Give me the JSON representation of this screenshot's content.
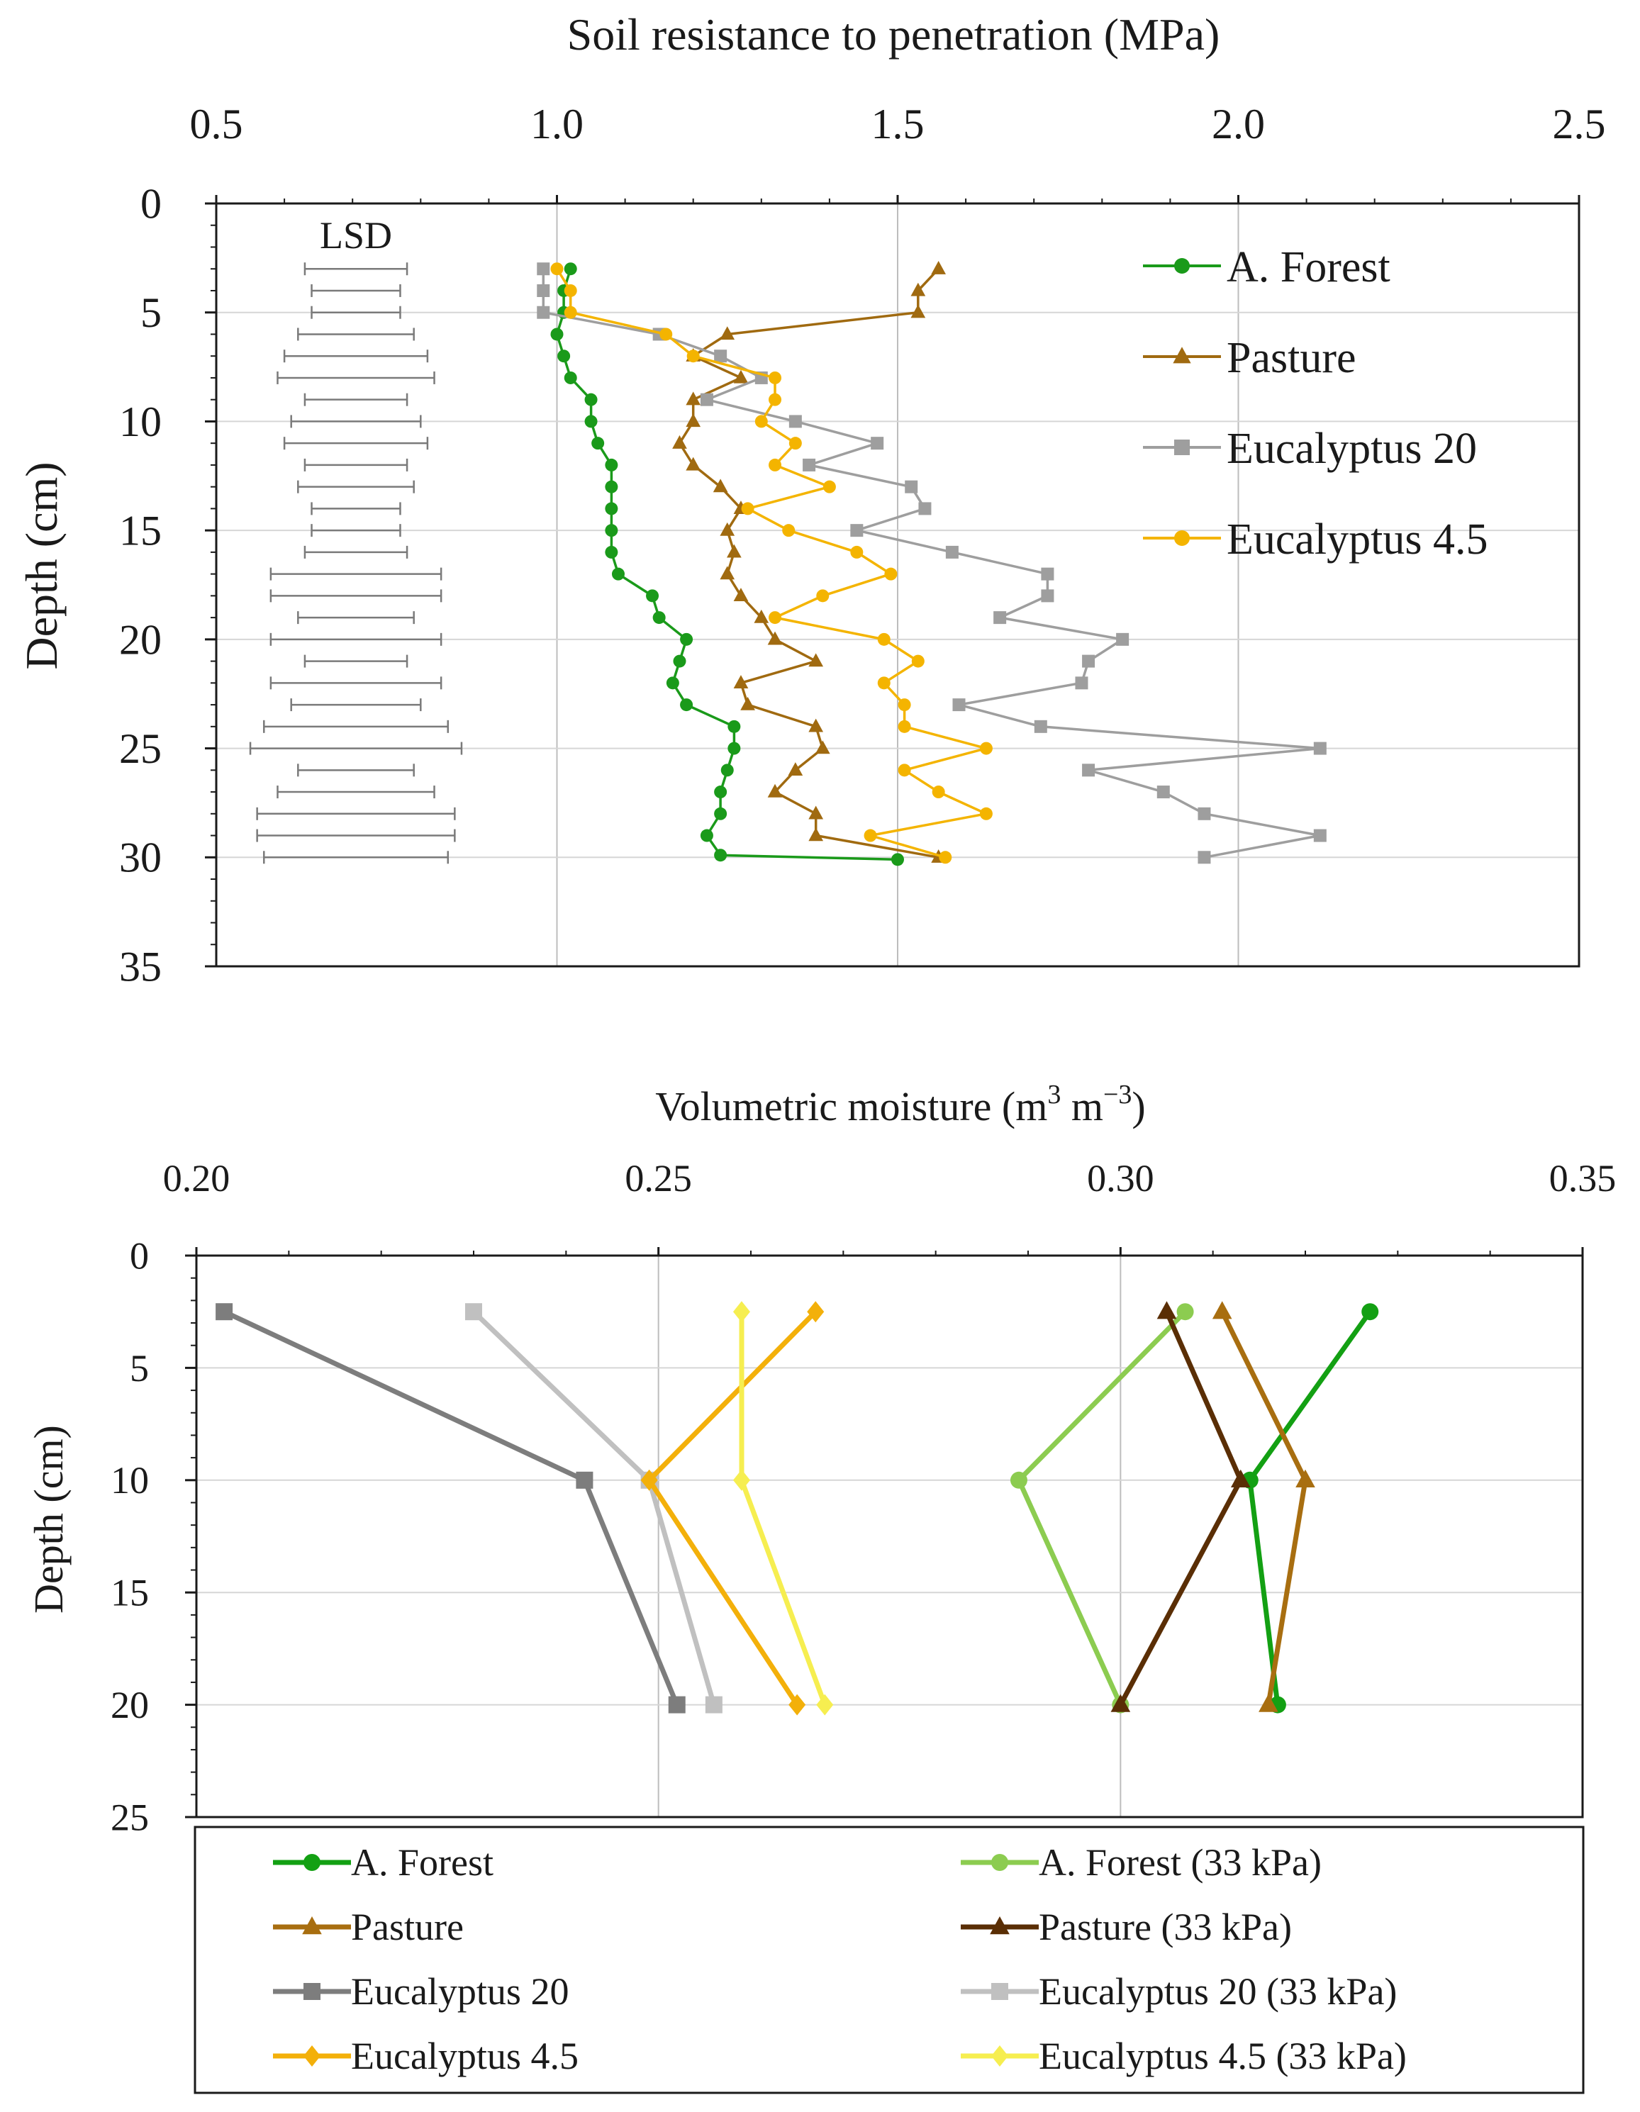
{
  "chart_data": [
    {
      "type": "line",
      "title": "",
      "xlabel": "Soil resistance to penetration (MPa)",
      "ylabel": "Depth (cm)",
      "xlim": [
        0.5,
        2.5
      ],
      "ylim": [
        0,
        35
      ],
      "x_ticks": [
        "0.5",
        "1.0",
        "1.5",
        "2.0",
        "2.5"
      ],
      "y_ticks": [
        "0",
        "5",
        "10",
        "15",
        "20",
        "25",
        "30",
        "35"
      ],
      "x_axis_position": "top",
      "y_inverted": true,
      "grid": true,
      "legend_position": "top-right",
      "lsd_label": "LSD",
      "lsd_bars": [
        {
          "depth": 3,
          "low": 0.63,
          "high": 0.78
        },
        {
          "depth": 4,
          "low": 0.64,
          "high": 0.77
        },
        {
          "depth": 5,
          "low": 0.64,
          "high": 0.77
        },
        {
          "depth": 6,
          "low": 0.62,
          "high": 0.79
        },
        {
          "depth": 7,
          "low": 0.6,
          "high": 0.81
        },
        {
          "depth": 8,
          "low": 0.59,
          "high": 0.82
        },
        {
          "depth": 9,
          "low": 0.63,
          "high": 0.78
        },
        {
          "depth": 10,
          "low": 0.61,
          "high": 0.8
        },
        {
          "depth": 11,
          "low": 0.6,
          "high": 0.81
        },
        {
          "depth": 12,
          "low": 0.63,
          "high": 0.78
        },
        {
          "depth": 13,
          "low": 0.62,
          "high": 0.79
        },
        {
          "depth": 14,
          "low": 0.64,
          "high": 0.77
        },
        {
          "depth": 15,
          "low": 0.64,
          "high": 0.77
        },
        {
          "depth": 16,
          "low": 0.63,
          "high": 0.78
        },
        {
          "depth": 17,
          "low": 0.58,
          "high": 0.83
        },
        {
          "depth": 18,
          "low": 0.58,
          "high": 0.83
        },
        {
          "depth": 19,
          "low": 0.62,
          "high": 0.79
        },
        {
          "depth": 20,
          "low": 0.58,
          "high": 0.83
        },
        {
          "depth": 21,
          "low": 0.63,
          "high": 0.78
        },
        {
          "depth": 22,
          "low": 0.58,
          "high": 0.83
        },
        {
          "depth": 23,
          "low": 0.61,
          "high": 0.8
        },
        {
          "depth": 24,
          "low": 0.57,
          "high": 0.84
        },
        {
          "depth": 25,
          "low": 0.55,
          "high": 0.86
        },
        {
          "depth": 26,
          "low": 0.62,
          "high": 0.79
        },
        {
          "depth": 27,
          "low": 0.59,
          "high": 0.82
        },
        {
          "depth": 28,
          "low": 0.56,
          "high": 0.85
        },
        {
          "depth": 29,
          "low": 0.56,
          "high": 0.85
        },
        {
          "depth": 30,
          "low": 0.57,
          "high": 0.84
        }
      ],
      "series": [
        {
          "name": "A. Forest",
          "color": "#1a9a1a",
          "marker": "circle",
          "points": [
            [
              1.02,
              3
            ],
            [
              1.01,
              4
            ],
            [
              1.01,
              5
            ],
            [
              1.0,
              6
            ],
            [
              1.01,
              7
            ],
            [
              1.02,
              8
            ],
            [
              1.05,
              9
            ],
            [
              1.05,
              10
            ],
            [
              1.06,
              11
            ],
            [
              1.08,
              12
            ],
            [
              1.08,
              13
            ],
            [
              1.08,
              14
            ],
            [
              1.08,
              15
            ],
            [
              1.08,
              16
            ],
            [
              1.09,
              17
            ],
            [
              1.14,
              18
            ],
            [
              1.15,
              19
            ],
            [
              1.19,
              20
            ],
            [
              1.18,
              21
            ],
            [
              1.17,
              22
            ],
            [
              1.19,
              23
            ],
            [
              1.26,
              24
            ],
            [
              1.26,
              25
            ],
            [
              1.25,
              26
            ],
            [
              1.24,
              27
            ],
            [
              1.24,
              28
            ],
            [
              1.22,
              29
            ],
            [
              1.24,
              29.9
            ],
            [
              1.5,
              30.1
            ]
          ]
        },
        {
          "name": "Pasture",
          "color": "#a06a10",
          "marker": "triangle",
          "points": [
            [
              1.56,
              3
            ],
            [
              1.53,
              4
            ],
            [
              1.53,
              5
            ],
            [
              1.25,
              6
            ],
            [
              1.2,
              7
            ],
            [
              1.27,
              8
            ],
            [
              1.2,
              9
            ],
            [
              1.2,
              10
            ],
            [
              1.18,
              11
            ],
            [
              1.2,
              12
            ],
            [
              1.24,
              13
            ],
            [
              1.27,
              14
            ],
            [
              1.25,
              15
            ],
            [
              1.26,
              16
            ],
            [
              1.25,
              17
            ],
            [
              1.27,
              18
            ],
            [
              1.3,
              19
            ],
            [
              1.32,
              20
            ],
            [
              1.38,
              21
            ],
            [
              1.27,
              22
            ],
            [
              1.28,
              23
            ],
            [
              1.38,
              24
            ],
            [
              1.39,
              25
            ],
            [
              1.35,
              26
            ],
            [
              1.32,
              27
            ],
            [
              1.38,
              28
            ],
            [
              1.38,
              29
            ],
            [
              1.56,
              30
            ]
          ]
        },
        {
          "name": "Eucalyptus 20",
          "color": "#9e9e9e",
          "marker": "square",
          "points": [
            [
              0.98,
              3
            ],
            [
              0.98,
              4
            ],
            [
              0.98,
              5
            ],
            [
              1.15,
              6
            ],
            [
              1.24,
              7
            ],
            [
              1.3,
              8
            ],
            [
              1.22,
              9
            ],
            [
              1.35,
              10
            ],
            [
              1.47,
              11
            ],
            [
              1.37,
              12
            ],
            [
              1.52,
              13
            ],
            [
              1.54,
              14
            ],
            [
              1.44,
              15
            ],
            [
              1.58,
              16
            ],
            [
              1.72,
              17
            ],
            [
              1.72,
              18
            ],
            [
              1.65,
              19
            ],
            [
              1.83,
              20
            ],
            [
              1.78,
              21
            ],
            [
              1.77,
              22
            ],
            [
              1.59,
              23
            ],
            [
              1.71,
              24
            ],
            [
              2.12,
              25
            ],
            [
              1.78,
              26
            ],
            [
              1.89,
              27
            ],
            [
              1.95,
              28
            ],
            [
              2.12,
              29
            ],
            [
              1.95,
              30
            ]
          ]
        },
        {
          "name": "Eucalyptus 4.5",
          "color": "#f4b400",
          "marker": "circle",
          "points": [
            [
              1.0,
              3
            ],
            [
              1.02,
              4
            ],
            [
              1.02,
              5
            ],
            [
              1.16,
              6
            ],
            [
              1.2,
              7
            ],
            [
              1.32,
              8
            ],
            [
              1.32,
              9
            ],
            [
              1.3,
              10
            ],
            [
              1.35,
              11
            ],
            [
              1.32,
              12
            ],
            [
              1.4,
              13
            ],
            [
              1.28,
              14
            ],
            [
              1.34,
              15
            ],
            [
              1.44,
              16
            ],
            [
              1.49,
              17
            ],
            [
              1.39,
              18
            ],
            [
              1.32,
              19
            ],
            [
              1.48,
              20
            ],
            [
              1.53,
              21
            ],
            [
              1.48,
              22
            ],
            [
              1.51,
              23
            ],
            [
              1.51,
              24
            ],
            [
              1.63,
              25
            ],
            [
              1.51,
              26
            ],
            [
              1.56,
              27
            ],
            [
              1.63,
              28
            ],
            [
              1.46,
              29
            ],
            [
              1.57,
              30
            ]
          ]
        }
      ]
    },
    {
      "type": "line",
      "title": "",
      "xlabel": "Volumetric moisture (m3 m-3)",
      "xlabel_parts": [
        "Volumetric moisture (m",
        "3",
        " m",
        "−3",
        ")"
      ],
      "ylabel": "Depth (cm)",
      "xlim": [
        0.2,
        0.35
      ],
      "ylim": [
        0,
        25
      ],
      "x_ticks": [
        "0.20",
        "0.25",
        "0.30",
        "0.35"
      ],
      "y_ticks": [
        "0",
        "5",
        "10",
        "15",
        "20",
        "25"
      ],
      "x_axis_position": "top",
      "y_inverted": true,
      "grid": true,
      "legend_position": "bottom",
      "series": [
        {
          "name": "A. Forest",
          "color": "#13a013",
          "marker": "circle",
          "points": [
            [
              0.327,
              2.5
            ],
            [
              0.314,
              10
            ],
            [
              0.317,
              20
            ]
          ]
        },
        {
          "name": "A. Forest (33 kPa)",
          "color": "#8ccc50",
          "marker": "circle",
          "points": [
            [
              0.307,
              2.5
            ],
            [
              0.289,
              10
            ],
            [
              0.3,
              20
            ]
          ]
        },
        {
          "name": "Pasture",
          "color": "#a86e10",
          "marker": "triangle",
          "points": [
            [
              0.311,
              2.5
            ],
            [
              0.32,
              10
            ],
            [
              0.316,
              20
            ]
          ]
        },
        {
          "name": "Pasture (33 kPa)",
          "color": "#5a2e05",
          "marker": "triangle",
          "points": [
            [
              0.305,
              2.5
            ],
            [
              0.313,
              10
            ],
            [
              0.3,
              20
            ]
          ]
        },
        {
          "name": "Eucalyptus 20",
          "color": "#7d7d7d",
          "marker": "square",
          "points": [
            [
              0.203,
              2.5
            ],
            [
              0.242,
              10
            ],
            [
              0.252,
              20
            ]
          ]
        },
        {
          "name": "Eucalyptus 20 (33 kPa)",
          "color": "#c0c0c0",
          "marker": "square",
          "points": [
            [
              0.23,
              2.5
            ],
            [
              0.249,
              10
            ],
            [
              0.256,
              20
            ]
          ]
        },
        {
          "name": "Eucalyptus 4.5",
          "color": "#f3b00a",
          "marker": "diamond",
          "points": [
            [
              0.267,
              2.5
            ],
            [
              0.249,
              10
            ],
            [
              0.265,
              20
            ]
          ]
        },
        {
          "name": "Eucalyptus 4.5 (33 kPa)",
          "color": "#f6ee50",
          "marker": "diamond",
          "points": [
            [
              0.259,
              2.5
            ],
            [
              0.259,
              10
            ],
            [
              0.268,
              20
            ]
          ]
        }
      ]
    }
  ]
}
